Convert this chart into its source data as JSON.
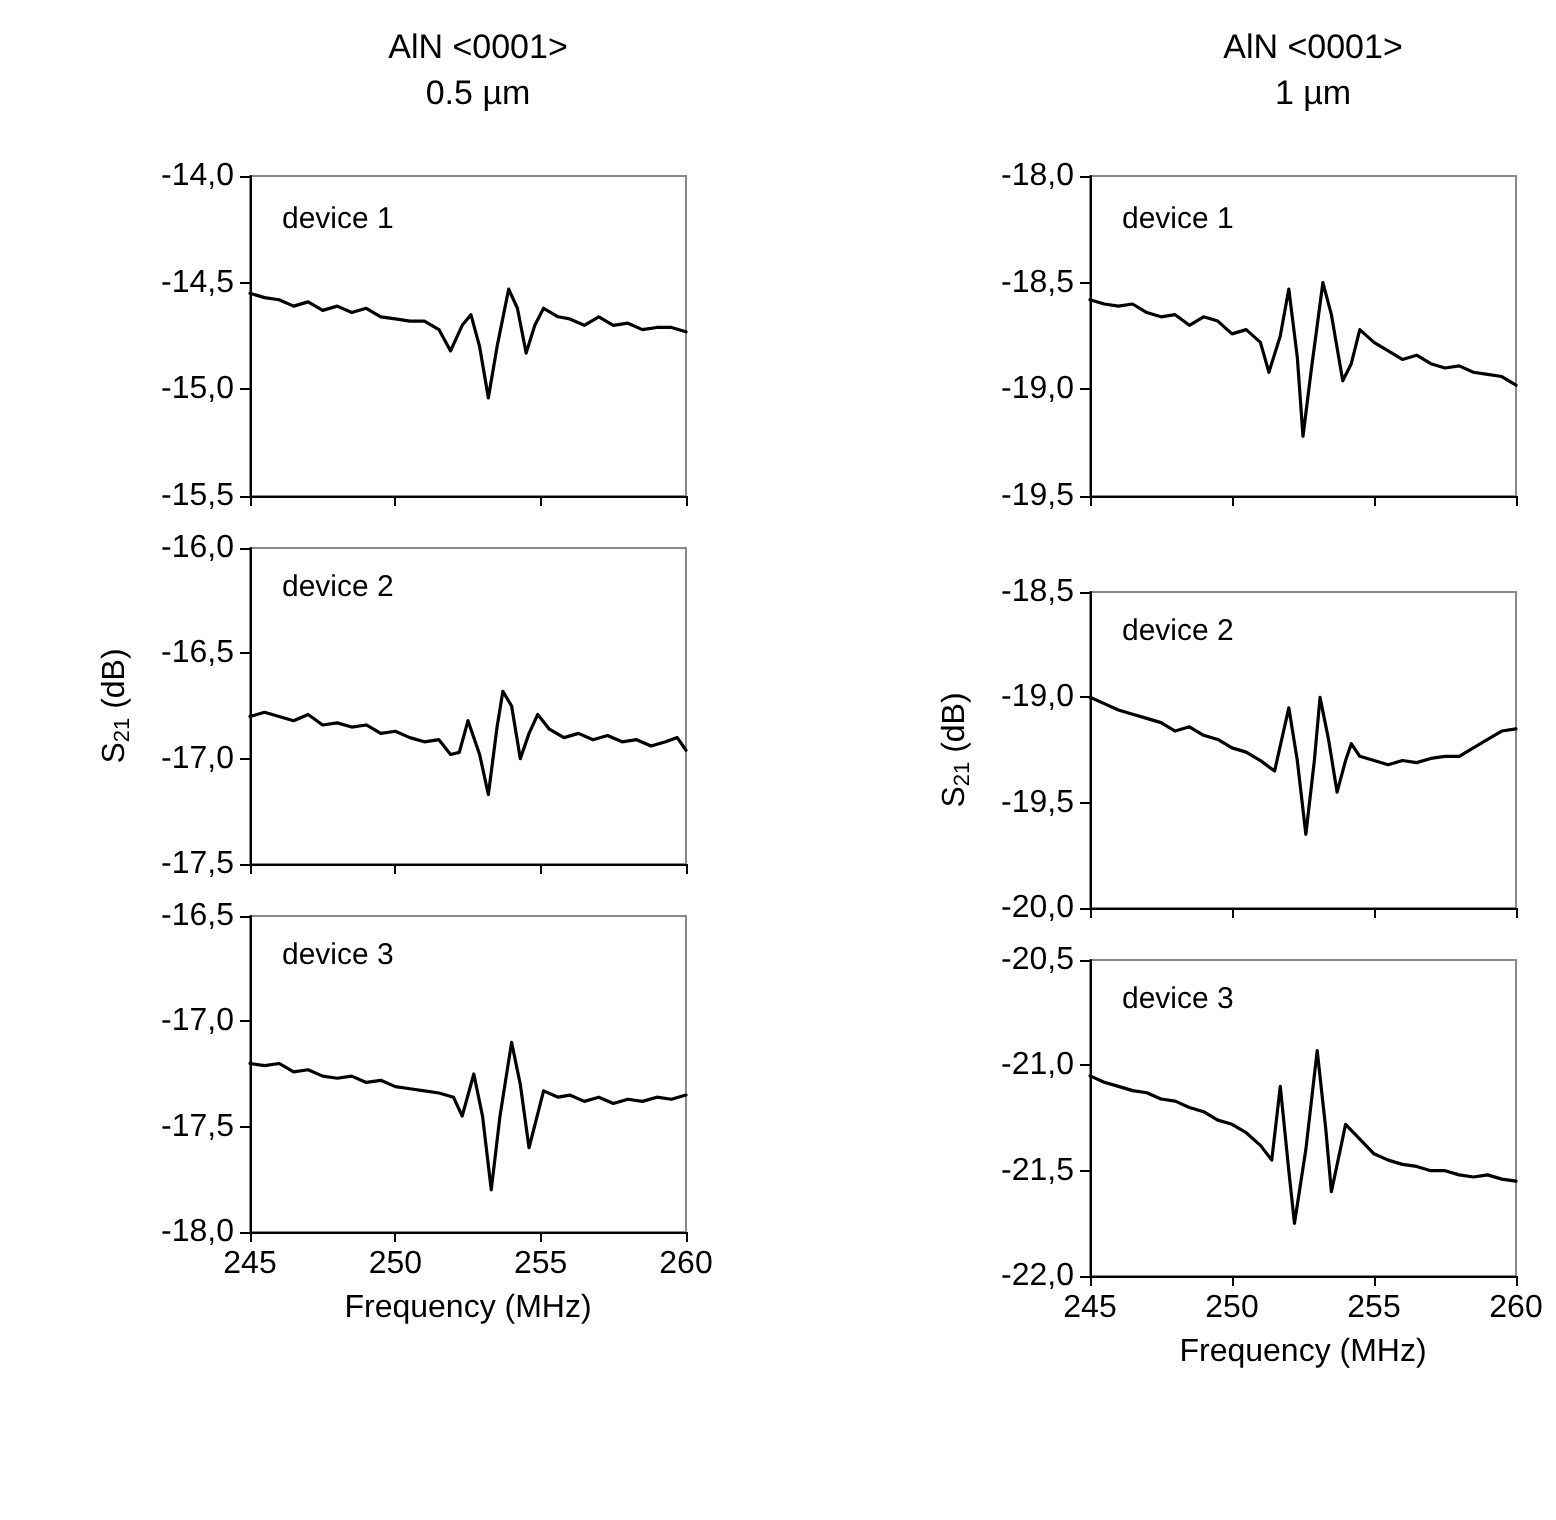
{
  "chart_data": [
    {
      "type": "line",
      "title": "AlN <0001>",
      "subtitle": "0.5 µm",
      "annotations": [
        "device 1"
      ],
      "tick_labels": "y",
      "x": [
        245,
        245.5,
        246,
        246.5,
        247,
        247.5,
        248,
        248.5,
        249,
        249.5,
        250,
        250.5,
        251,
        251.5,
        251.9,
        252.3,
        252.6,
        252.9,
        253.2,
        253.5,
        253.9,
        254.2,
        254.5,
        254.8,
        255.1,
        255.6,
        256,
        256.5,
        257,
        257.5,
        258,
        258.5,
        259,
        259.5,
        260
      ],
      "series": [
        {
          "color": "#000000",
          "values": [
            -14.55,
            -14.57,
            -14.58,
            -14.61,
            -14.59,
            -14.63,
            -14.61,
            -14.64,
            -14.62,
            -14.66,
            -14.67,
            -14.68,
            -14.68,
            -14.72,
            -14.82,
            -14.7,
            -14.65,
            -14.8,
            -15.04,
            -14.8,
            -14.53,
            -14.62,
            -14.83,
            -14.7,
            -14.62,
            -14.66,
            -14.67,
            -14.7,
            -14.66,
            -14.7,
            -14.69,
            -14.72,
            -14.71,
            -14.71,
            -14.73
          ]
        }
      ],
      "xlim": [
        245,
        260
      ],
      "xticks": [
        245,
        250,
        255,
        260
      ],
      "ylim": [
        -15.5,
        -14.0
      ],
      "yticks": [
        {
          "value": -15.5,
          "label": "-15,5"
        },
        {
          "value": -15.0,
          "label": "-15,0"
        },
        {
          "value": -14.5,
          "label": "-14,5"
        },
        {
          "value": -14.0,
          "label": "-14,0"
        }
      ]
    },
    {
      "type": "line",
      "title": "AlN <0001>",
      "subtitle": "1 µm",
      "annotations": [
        "device 1"
      ],
      "tick_labels": "y",
      "x": [
        245,
        245.5,
        246,
        246.5,
        247,
        247.5,
        248,
        248.5,
        249,
        249.5,
        250,
        250.5,
        251,
        251.3,
        251.7,
        252,
        252.3,
        252.5,
        252.8,
        253.2,
        253.5,
        253.9,
        254.2,
        254.5,
        255,
        255.5,
        256,
        256.5,
        257,
        257.5,
        258,
        258.5,
        259,
        259.5,
        260
      ],
      "series": [
        {
          "color": "#000000",
          "values": [
            -18.58,
            -18.6,
            -18.61,
            -18.6,
            -18.64,
            -18.66,
            -18.65,
            -18.7,
            -18.66,
            -18.68,
            -18.74,
            -18.72,
            -18.78,
            -18.92,
            -18.75,
            -18.53,
            -18.85,
            -19.22,
            -18.9,
            -18.5,
            -18.65,
            -18.96,
            -18.88,
            -18.72,
            -18.78,
            -18.82,
            -18.86,
            -18.84,
            -18.88,
            -18.9,
            -18.89,
            -18.92,
            -18.93,
            -18.94,
            -18.98
          ]
        }
      ],
      "xlim": [
        245,
        260
      ],
      "xticks": [
        245,
        250,
        255,
        260
      ],
      "ylim": [
        -19.5,
        -18.0
      ],
      "yticks": [
        {
          "value": -19.5,
          "label": "-19,5"
        },
        {
          "value": -19.0,
          "label": "-19,0"
        },
        {
          "value": -18.5,
          "label": "-18,5"
        },
        {
          "value": -18.0,
          "label": "-18,0"
        }
      ]
    },
    {
      "type": "line",
      "ylabel": "S$_{21}$ (dB)",
      "annotations": [
        "device 2"
      ],
      "tick_labels": "y",
      "x": [
        245,
        245.5,
        246,
        246.5,
        247,
        247.5,
        248,
        248.5,
        249,
        249.5,
        250,
        250.5,
        251,
        251.5,
        251.9,
        252.2,
        252.5,
        252.9,
        253.2,
        253.5,
        253.7,
        254,
        254.3,
        254.6,
        254.9,
        255.3,
        255.8,
        256.3,
        256.8,
        257.3,
        257.8,
        258.3,
        258.8,
        259.3,
        259.7,
        260
      ],
      "series": [
        {
          "color": "#000000",
          "values": [
            -16.8,
            -16.78,
            -16.8,
            -16.82,
            -16.79,
            -16.84,
            -16.83,
            -16.85,
            -16.84,
            -16.88,
            -16.87,
            -16.9,
            -16.92,
            -16.91,
            -16.98,
            -16.97,
            -16.82,
            -16.98,
            -17.17,
            -16.85,
            -16.68,
            -16.75,
            -17.0,
            -16.88,
            -16.79,
            -16.86,
            -16.9,
            -16.88,
            -16.91,
            -16.89,
            -16.92,
            -16.91,
            -16.94,
            -16.92,
            -16.9,
            -16.96
          ]
        }
      ],
      "xlim": [
        245,
        260
      ],
      "xticks": [
        245,
        250,
        255,
        260
      ],
      "ylim": [
        -17.5,
        -16.0
      ],
      "yticks": [
        {
          "value": -17.5,
          "label": "-17,5"
        },
        {
          "value": -17.0,
          "label": "-17,0"
        },
        {
          "value": -16.5,
          "label": "-16,5"
        },
        {
          "value": -16.0,
          "label": "-16,0"
        }
      ]
    },
    {
      "type": "line",
      "ylabel": "S$_{21}$ (dB)",
      "annotations": [
        "device 2"
      ],
      "tick_labels": "y",
      "x": [
        245,
        245.5,
        246,
        246.5,
        247,
        247.5,
        248,
        248.5,
        249,
        249.5,
        250,
        250.5,
        251,
        251.5,
        252,
        252.3,
        252.6,
        252.9,
        253.1,
        253.4,
        253.7,
        254,
        254.2,
        254.5,
        255,
        255.5,
        256,
        256.5,
        257,
        257.5,
        258,
        258.5,
        259,
        259.5,
        260
      ],
      "series": [
        {
          "color": "#000000",
          "values": [
            -19.0,
            -19.03,
            -19.06,
            -19.08,
            -19.1,
            -19.12,
            -19.16,
            -19.14,
            -19.18,
            -19.2,
            -19.24,
            -19.26,
            -19.3,
            -19.35,
            -19.05,
            -19.3,
            -19.65,
            -19.3,
            -19.0,
            -19.2,
            -19.45,
            -19.3,
            -19.22,
            -19.28,
            -19.3,
            -19.32,
            -19.3,
            -19.31,
            -19.29,
            -19.28,
            -19.28,
            -19.24,
            -19.2,
            -19.16,
            -19.15
          ]
        }
      ],
      "xlim": [
        245,
        260
      ],
      "xticks": [
        245,
        250,
        255,
        260
      ],
      "ylim": [
        -20.0,
        -18.5
      ],
      "yticks": [
        {
          "value": -20.0,
          "label": "-20,0"
        },
        {
          "value": -19.5,
          "label": "-19,5"
        },
        {
          "value": -19.0,
          "label": "-19,0"
        },
        {
          "value": -18.5,
          "label": "-18,5"
        }
      ]
    },
    {
      "type": "line",
      "xlabel": "Frequency (MHz)",
      "annotations": [
        "device 3"
      ],
      "x": [
        245,
        245.5,
        246,
        246.5,
        247,
        247.5,
        248,
        248.5,
        249,
        249.5,
        250,
        250.5,
        251,
        251.5,
        252,
        252.3,
        252.7,
        253,
        253.3,
        253.6,
        254,
        254.3,
        254.6,
        255.1,
        255.6,
        256,
        256.5,
        257,
        257.5,
        258,
        258.5,
        259,
        259.5,
        260
      ],
      "series": [
        {
          "color": "#000000",
          "values": [
            -17.2,
            -17.21,
            -17.2,
            -17.24,
            -17.23,
            -17.26,
            -17.27,
            -17.26,
            -17.29,
            -17.28,
            -17.31,
            -17.32,
            -17.33,
            -17.34,
            -17.36,
            -17.45,
            -17.25,
            -17.45,
            -17.8,
            -17.45,
            -17.1,
            -17.3,
            -17.6,
            -17.33,
            -17.36,
            -17.35,
            -17.38,
            -17.36,
            -17.39,
            -17.37,
            -17.38,
            -17.36,
            -17.37,
            -17.35
          ]
        }
      ],
      "xlim": [
        245,
        260
      ],
      "xticks": [
        245,
        250,
        255,
        260
      ],
      "ylim": [
        -18.0,
        -16.5
      ],
      "yticks": [
        {
          "value": -18.0,
          "label": "-18,0"
        },
        {
          "value": -17.5,
          "label": "-17,5"
        },
        {
          "value": -17.0,
          "label": "-17,0"
        },
        {
          "value": -16.5,
          "label": "-16,5"
        }
      ]
    },
    {
      "type": "line",
      "xlabel": "Frequency (MHz)",
      "annotations": [
        "device 3"
      ],
      "x": [
        245,
        245.5,
        246,
        246.5,
        247,
        247.5,
        248,
        248.5,
        249,
        249.5,
        250,
        250.5,
        251,
        251.4,
        251.7,
        252,
        252.2,
        252.6,
        253,
        253.3,
        253.5,
        254,
        254.5,
        255,
        255.5,
        256,
        256.5,
        257,
        257.5,
        258,
        258.5,
        259,
        259.5,
        260
      ],
      "series": [
        {
          "color": "#000000",
          "values": [
            -21.05,
            -21.08,
            -21.1,
            -21.12,
            -21.13,
            -21.16,
            -21.17,
            -21.2,
            -21.22,
            -21.26,
            -21.28,
            -21.32,
            -21.38,
            -21.45,
            -21.1,
            -21.5,
            -21.75,
            -21.4,
            -20.93,
            -21.3,
            -21.6,
            -21.28,
            -21.35,
            -21.42,
            -21.45,
            -21.47,
            -21.48,
            -21.5,
            -21.5,
            -21.52,
            -21.53,
            -21.52,
            -21.54,
            -21.55
          ]
        }
      ],
      "xlim": [
        245,
        260
      ],
      "xticks": [
        245,
        250,
        255,
        260
      ],
      "ylim": [
        -22.0,
        -20.5
      ],
      "yticks": [
        {
          "value": -22.0,
          "label": "-22,0"
        },
        {
          "value": -21.5,
          "label": "-21,5"
        },
        {
          "value": -21.0,
          "label": "-21,0"
        },
        {
          "value": -20.5,
          "label": "-20,5"
        }
      ]
    }
  ]
}
